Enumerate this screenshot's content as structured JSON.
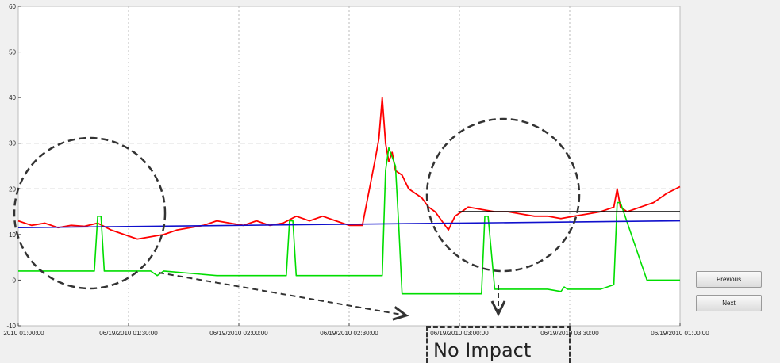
{
  "chart_data": {
    "type": "line",
    "ylim": [
      -10,
      60
    ],
    "y_ticks": [
      "-10",
      "0",
      "10",
      "20",
      "30",
      "40",
      "50",
      "60"
    ],
    "x_tick_labels": [
      "2010 01:00:00",
      "06/19/2010 01:30:00",
      "06/19/2010 02:00:00",
      "06/19/2010 02:30:00",
      "06/19/2010 03:00:00",
      "06/19/2010 03:30:00",
      "06/19/2010 01:00:00"
    ],
    "grid": true,
    "series": [
      {
        "color": "#ff0000",
        "x": [
          0,
          0.02,
          0.04,
          0.06,
          0.08,
          0.1,
          0.12,
          0.14,
          0.16,
          0.18,
          0.2,
          0.22,
          0.24,
          0.26,
          0.28,
          0.3,
          0.32,
          0.34,
          0.36,
          0.38,
          0.4,
          0.42,
          0.44,
          0.46,
          0.48,
          0.5,
          0.52,
          0.54,
          0.545,
          0.55,
          0.555,
          0.56,
          0.565,
          0.57,
          0.58,
          0.59,
          0.6,
          0.61,
          0.62,
          0.63,
          0.64,
          0.65,
          0.66,
          0.67,
          0.68,
          0.7,
          0.72,
          0.74,
          0.76,
          0.78,
          0.8,
          0.82,
          0.84,
          0.86,
          0.88,
          0.9,
          0.905,
          0.91,
          0.92,
          0.94,
          0.96,
          0.98,
          1.0
        ],
        "values": [
          13,
          12,
          12.5,
          11.5,
          12,
          11.8,
          12.5,
          11,
          10,
          9,
          9.5,
          10,
          11,
          11.5,
          12,
          13,
          12.5,
          12,
          13,
          12,
          12.5,
          14,
          13,
          14,
          13,
          12,
          12,
          27,
          31,
          40,
          30,
          26,
          28,
          24,
          23,
          20,
          19,
          18,
          16,
          15,
          13,
          11,
          14,
          15,
          16,
          15.5,
          15,
          15,
          14.5,
          14,
          14,
          13.5,
          14,
          14.5,
          15,
          16,
          20,
          16,
          15,
          16,
          17,
          19,
          20.5
        ]
      },
      {
        "color": "#00dd00",
        "x": [
          0,
          0.1,
          0.115,
          0.12,
          0.125,
          0.13,
          0.2,
          0.21,
          0.22,
          0.3,
          0.4,
          0.405,
          0.41,
          0.415,
          0.42,
          0.5,
          0.55,
          0.555,
          0.56,
          0.57,
          0.575,
          0.58,
          0.6,
          0.65,
          0.7,
          0.705,
          0.71,
          0.72,
          0.72,
          0.8,
          0.82,
          0.825,
          0.83,
          0.88,
          0.9,
          0.905,
          0.91,
          0.95,
          0.955,
          1.0
        ],
        "values": [
          2,
          2,
          2,
          14,
          14,
          2,
          2,
          1,
          2,
          1,
          1,
          1,
          13,
          13,
          1,
          1,
          1,
          24,
          29,
          25,
          12,
          -3,
          -3,
          -3,
          -3,
          14,
          14,
          -2,
          -2,
          -2,
          -2.5,
          -1.5,
          -2,
          -2,
          -1,
          17,
          17,
          0,
          0,
          0
        ]
      },
      {
        "color": "#1010cc",
        "x": [
          0,
          1
        ],
        "values": [
          11.5,
          13
        ]
      },
      {
        "color": "#000000",
        "x": [
          0.665,
          1.0
        ],
        "values": [
          15,
          15
        ]
      }
    ],
    "annotations": [
      "No Impact"
    ]
  },
  "controls": {
    "previous_label": "Previous",
    "next_label": "Next"
  },
  "annotation_label": "No Impact"
}
